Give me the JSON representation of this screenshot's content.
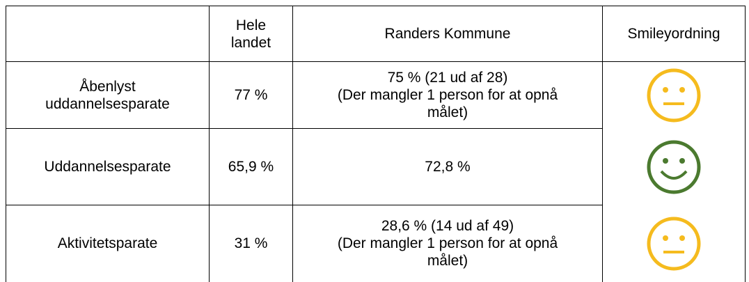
{
  "table": {
    "header": [
      "",
      "Hele landet",
      "Randers Kommune",
      "Smileyordning"
    ],
    "rows": [
      [
        "Åbenlyst uddannelsesparate",
        "77 %",
        "75 % (21 ud af 28)\n(Der mangler 1 person for at opnå målet)"
      ],
      [
        "Uddannelsesparate",
        "65,9 %",
        "72,8 %"
      ],
      [
        "Aktivitetsparate",
        "31 %",
        "28,6 % (14 ud af 49)\n(Der mangler 1 person for at opnå målet)"
      ]
    ]
  }
}
